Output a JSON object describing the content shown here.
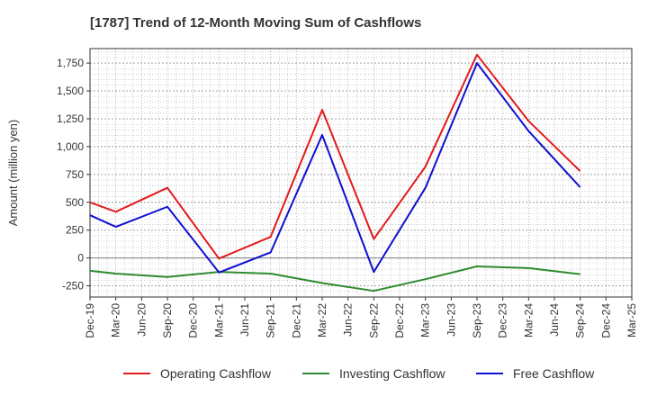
{
  "chart_data": {
    "type": "line",
    "title": "[1787]  Trend of 12-Month Moving Sum of Cashflows",
    "ylabel": "Amount (million yen)",
    "xlabel": "",
    "categories": [
      "Dec-19",
      "Mar-20",
      "Jun-20",
      "Sep-20",
      "Dec-20",
      "Mar-21",
      "Jun-21",
      "Sep-21",
      "Dec-21",
      "Mar-22",
      "Jun-22",
      "Sep-22",
      "Dec-22",
      "Mar-23",
      "Jun-23",
      "Sep-23",
      "Dec-23",
      "Mar-24",
      "Jun-24",
      "Sep-24",
      "Dec-24",
      "Mar-25"
    ],
    "y_ticks": [
      "1,750",
      "1,500",
      "1,250",
      "1,000",
      "750",
      "500",
      "250",
      "0",
      "-250"
    ],
    "y_tick_values": [
      1750,
      1500,
      1250,
      1000,
      750,
      500,
      250,
      0,
      -250
    ],
    "ylim": [
      -350,
      1880
    ],
    "grid": true,
    "legend_position": "bottom",
    "series": [
      {
        "name": "Operating Cashflow",
        "color": "#e31a1c",
        "values": [
          500,
          415,
          null,
          630,
          null,
          -5,
          null,
          190,
          null,
          1330,
          null,
          170,
          null,
          820,
          null,
          1825,
          null,
          1230,
          null,
          780,
          null,
          null
        ]
      },
      {
        "name": "Investing Cashflow",
        "color": "#2e8b2e",
        "values": [
          -115,
          -140,
          null,
          -170,
          null,
          -125,
          null,
          -140,
          null,
          -225,
          null,
          -295,
          null,
          -190,
          null,
          -75,
          null,
          -90,
          null,
          -145,
          null,
          null
        ]
      },
      {
        "name": "Free Cashflow",
        "color": "#1010d0",
        "values": [
          385,
          280,
          null,
          460,
          null,
          -130,
          null,
          50,
          null,
          1105,
          null,
          -125,
          null,
          630,
          null,
          1750,
          null,
          1140,
          null,
          635,
          null,
          null
        ]
      }
    ]
  }
}
